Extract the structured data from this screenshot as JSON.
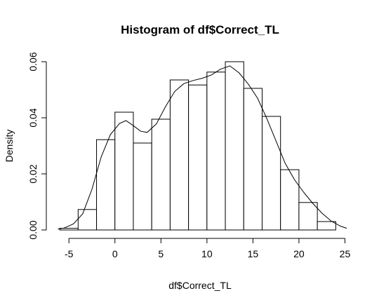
{
  "chart_data": {
    "type": "bar",
    "title": "Histogram of df$Correct_TL",
    "xlabel": "df$Correct_TL",
    "ylabel": "Density",
    "xlim": [
      -7,
      25.5
    ],
    "ylim": [
      0,
      0.0625
    ],
    "x_ticks": [
      -5,
      0,
      5,
      10,
      15,
      20,
      25
    ],
    "y_ticks": [
      0.0,
      0.02,
      0.04,
      0.06
    ],
    "y_tick_labels": [
      "0.00",
      "0.02",
      "0.04",
      "0.06"
    ],
    "bins": [
      {
        "from": -6,
        "to": -4,
        "density": 0.0006
      },
      {
        "from": -4,
        "to": -2,
        "density": 0.0073
      },
      {
        "from": -2,
        "to": 0,
        "density": 0.0322
      },
      {
        "from": 0,
        "to": 2,
        "density": 0.042
      },
      {
        "from": 2,
        "to": 4,
        "density": 0.031
      },
      {
        "from": 4,
        "to": 6,
        "density": 0.0395
      },
      {
        "from": 6,
        "to": 8,
        "density": 0.0535
      },
      {
        "from": 8,
        "to": 10,
        "density": 0.0517
      },
      {
        "from": 10,
        "to": 12,
        "density": 0.0563
      },
      {
        "from": 12,
        "to": 14,
        "density": 0.06
      },
      {
        "from": 14,
        "to": 16,
        "density": 0.0505
      },
      {
        "from": 16,
        "to": 18,
        "density": 0.0405
      },
      {
        "from": 18,
        "to": 20,
        "density": 0.0215
      },
      {
        "from": 20,
        "to": 22,
        "density": 0.0098
      },
      {
        "from": 22,
        "to": 24,
        "density": 0.003
      }
    ],
    "density_curve": {
      "x": [
        -6.2,
        -5.5,
        -4.5,
        -3.5,
        -2.5,
        -1.5,
        -0.5,
        0.5,
        1.2,
        2.0,
        2.8,
        3.5,
        4.5,
        5.5,
        6.5,
        7.5,
        8.5,
        9.5,
        10.5,
        11.5,
        12.5,
        13.5,
        14.5,
        15.5,
        16.5,
        17.5,
        18.5,
        19.5,
        20.5,
        21.5,
        22.5,
        23.5,
        24.5,
        25.2
      ],
      "y": [
        0.0003,
        0.0007,
        0.0022,
        0.0058,
        0.0145,
        0.026,
        0.034,
        0.038,
        0.039,
        0.0372,
        0.0352,
        0.0348,
        0.0378,
        0.044,
        0.0494,
        0.0522,
        0.0533,
        0.0541,
        0.0553,
        0.0574,
        0.0585,
        0.056,
        0.052,
        0.047,
        0.0398,
        0.0318,
        0.0238,
        0.018,
        0.0135,
        0.0095,
        0.006,
        0.0032,
        0.0014,
        0.0006
      ]
    },
    "grid": false
  }
}
